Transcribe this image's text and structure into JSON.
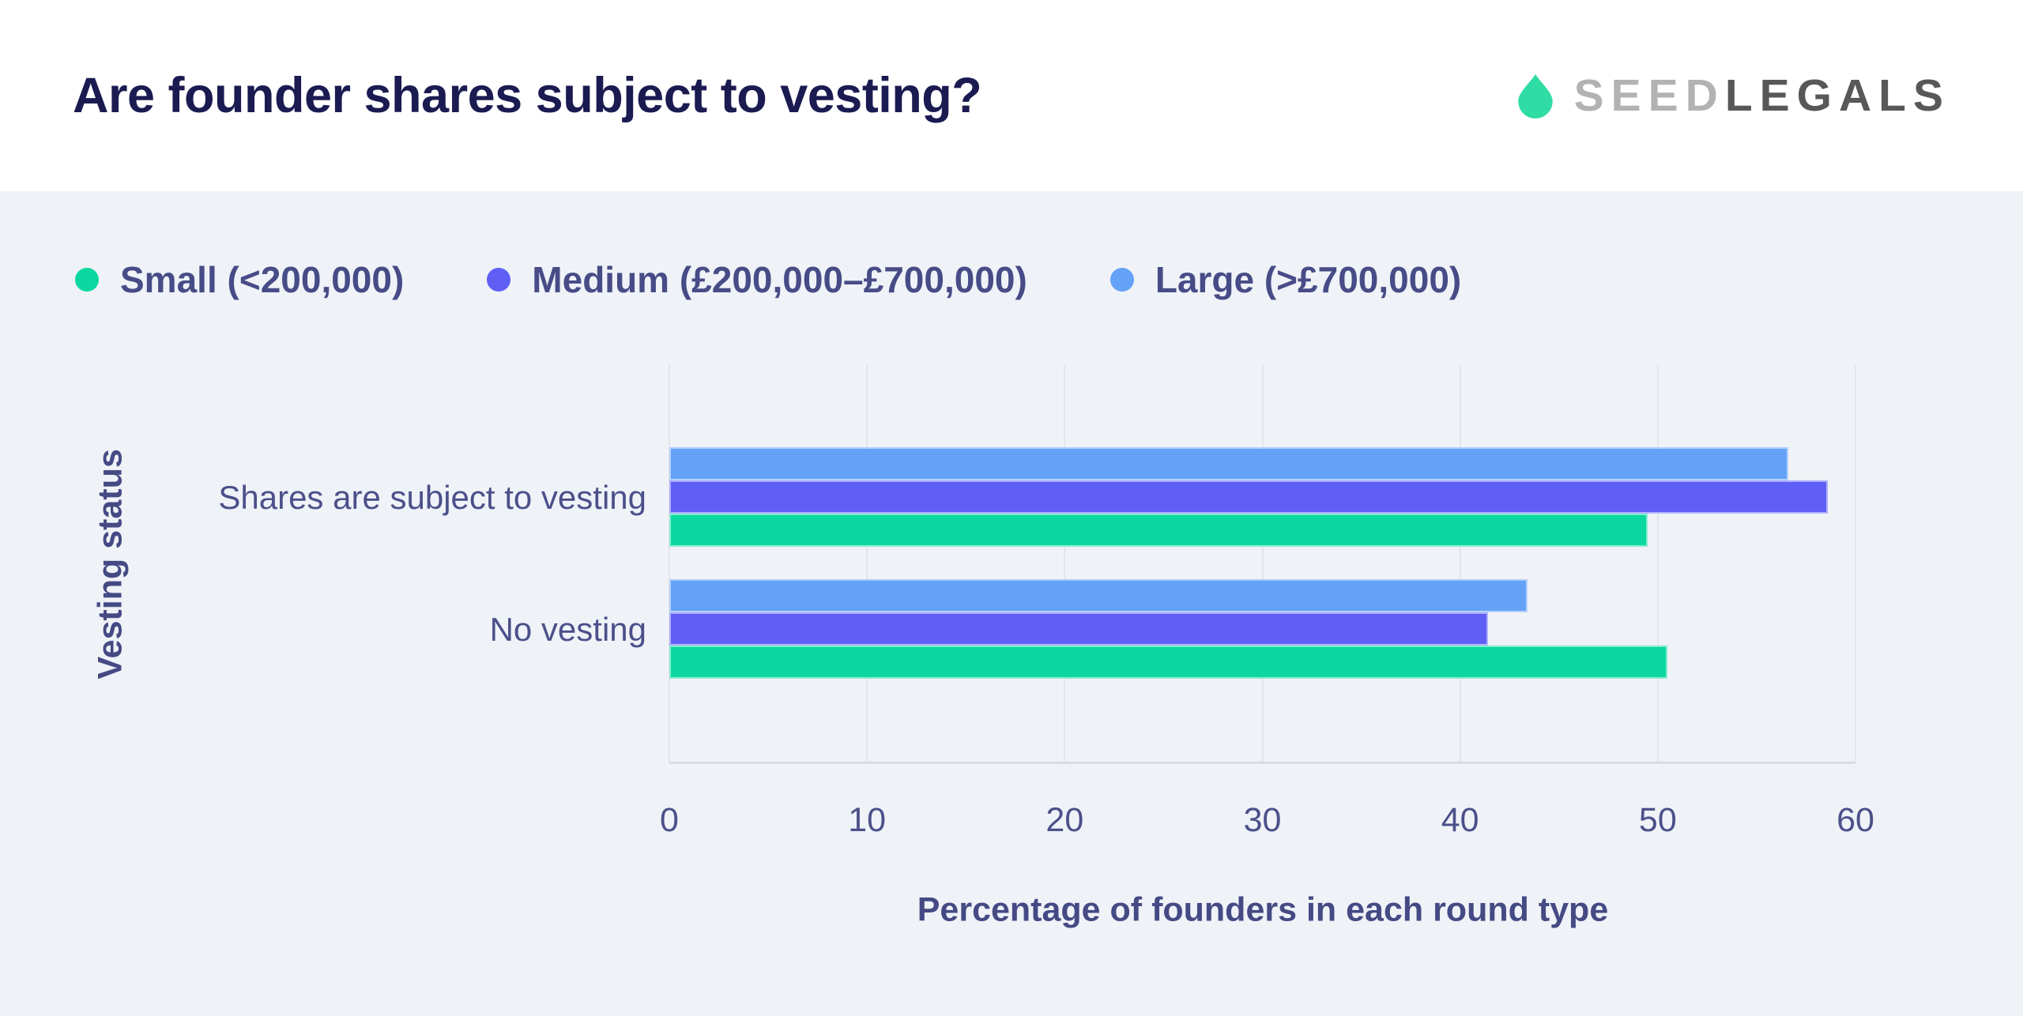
{
  "header": {
    "title": "Are founder shares subject to vesting?"
  },
  "logo": {
    "seed": "SEED",
    "legals": "LEGALS"
  },
  "chart_data": {
    "type": "bar",
    "orientation": "horizontal",
    "title": "Are founder shares subject to vesting?",
    "categories": [
      "Shares are subject to vesting",
      "No vesting"
    ],
    "series": [
      {
        "name": "Small (<200,000)",
        "color": "#0BD8A0",
        "values": [
          49.5,
          50.5
        ]
      },
      {
        "name": "Medium (£200,000–£700,000)",
        "color": "#5F5FF6",
        "values": [
          58.6,
          41.4
        ]
      },
      {
        "name": "Large (>£700,000)",
        "color": "#64A2F7",
        "values": [
          56.6,
          43.4
        ]
      }
    ],
    "bar_order_top_to_bottom": [
      "Large (>£700,000)",
      "Medium (£200,000–£700,000)",
      "Small (<200,000)"
    ],
    "xlabel": "Percentage of founders in each round type",
    "ylabel": "Vesting status",
    "xlim": [
      0,
      60
    ],
    "xticks": [
      0,
      10,
      20,
      30,
      40,
      50,
      60
    ],
    "grid": "vertical-gridlines",
    "legend_position": "top-left"
  },
  "colors": {
    "page_bg": "#EFF2F7",
    "header_bg": "#FFFFFF",
    "title_text": "#1B1B52",
    "axis_text": "#4B508A",
    "gridline": "#E2E5EB",
    "axis_line": "#D8DCE3",
    "logo_droplet": "#2EDCA4",
    "logo_seed": "#B2B2B4",
    "logo_legals": "#58585A"
  }
}
